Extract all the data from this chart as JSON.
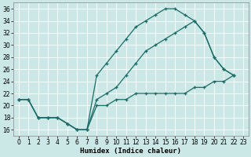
{
  "xlabel": "Humidex (Indice chaleur)",
  "background_color": "#cce8e6",
  "grid_color": "#b0d8d4",
  "line_color": "#1a6b68",
  "x_all": [
    0,
    1,
    2,
    3,
    4,
    5,
    6,
    7,
    8,
    9,
    10,
    11,
    12,
    13,
    14,
    15,
    16,
    17,
    18,
    19,
    20,
    21,
    22,
    23
  ],
  "y_upper": [
    21,
    21,
    18,
    18,
    18,
    17,
    16,
    16,
    25,
    27,
    29,
    31,
    33,
    34,
    35,
    36,
    36,
    35,
    34,
    32,
    28,
    26,
    25,
    null
  ],
  "y_lower": [
    21,
    21,
    18,
    18,
    18,
    17,
    16,
    16,
    20,
    20,
    21,
    21,
    22,
    22,
    22,
    22,
    22,
    22,
    23,
    23,
    24,
    24,
    25,
    null
  ],
  "y_mid": [
    21,
    21,
    18,
    18,
    18,
    17,
    16,
    16,
    21,
    22,
    23,
    25,
    27,
    29,
    30,
    31,
    32,
    33,
    34,
    32,
    28,
    26,
    25,
    null
  ],
  "xlim": [
    -0.5,
    23.5
  ],
  "ylim": [
    15.0,
    37.0
  ],
  "yticks": [
    16,
    18,
    20,
    22,
    24,
    26,
    28,
    30,
    32,
    34,
    36
  ],
  "xticks": [
    0,
    1,
    2,
    3,
    4,
    5,
    6,
    7,
    8,
    9,
    10,
    11,
    12,
    13,
    14,
    15,
    16,
    17,
    18,
    19,
    20,
    21,
    22,
    23
  ],
  "xlabel_fontsize": 6.5,
  "tick_labelsize": 5.5,
  "figsize": [
    3.2,
    2.0
  ],
  "dpi": 100
}
